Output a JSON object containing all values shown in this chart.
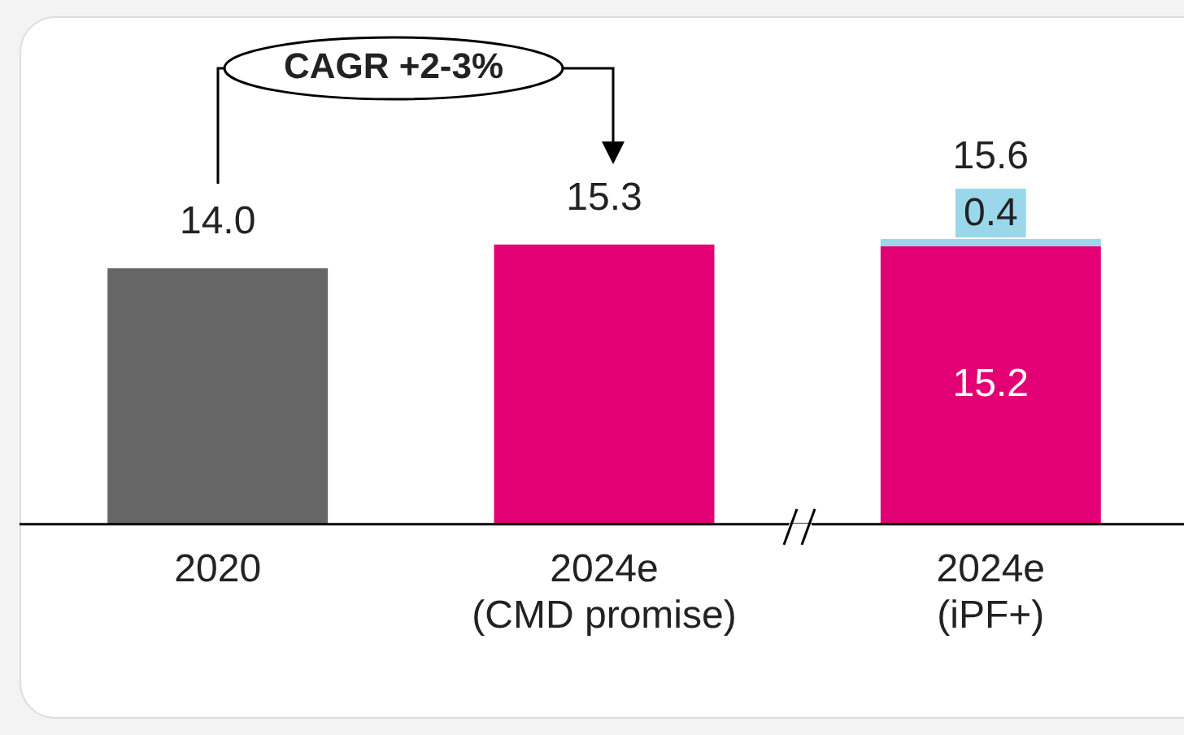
{
  "chart_data": {
    "type": "bar",
    "stacked": true,
    "categories": [
      "2020",
      "2024e\n(CMD promise)",
      "2024e\n(iPF+)"
    ],
    "series": [
      {
        "colors": [
          "#666666",
          "#e20074",
          "#e20074"
        ],
        "values": [
          14.0,
          15.3,
          15.2
        ],
        "value_labels": [
          "14.0",
          "15.3",
          "15.2"
        ]
      },
      {
        "color": "#9ad7ea",
        "values": [
          null,
          null,
          0.4
        ],
        "value_labels": [
          null,
          null,
          "0.4"
        ]
      }
    ],
    "totals": [
      null,
      null,
      "15.6"
    ],
    "annotations": [
      "CAGR +2-3%"
    ],
    "grid": false,
    "legend": false
  }
}
